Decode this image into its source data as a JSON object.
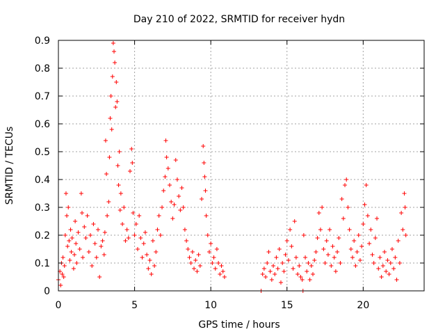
{
  "chart_data": {
    "type": "scatter",
    "title": "Day 210 of 2022, SRMTID for receiver hydn",
    "xlabel": "GPS time / hours",
    "ylabel": "SRMTID / TECUs",
    "xlim": [
      0,
      24
    ],
    "ylim": [
      0,
      0.9
    ],
    "xticks": [
      0,
      5,
      10,
      15,
      20
    ],
    "xtick_labels": [
      "0",
      "5",
      "10",
      "15",
      "20"
    ],
    "yticks": [
      0,
      0.1,
      0.2,
      0.3,
      0.4,
      0.5,
      0.6,
      0.7,
      0.8,
      0.9
    ],
    "ytick_labels": [
      "0",
      "0.1",
      "0.2",
      "0.3",
      "0.4",
      "0.5",
      "0.6",
      "0.7",
      "0.8",
      "0.9"
    ],
    "grid": true,
    "marker": "+",
    "series": [
      {
        "name": "SRMTID",
        "color": "#ff0000",
        "points": [
          [
            0.0,
            0.04
          ],
          [
            0.1,
            0.07
          ],
          [
            0.15,
            0.02
          ],
          [
            0.2,
            0.1
          ],
          [
            0.25,
            0.06
          ],
          [
            0.3,
            0.12
          ],
          [
            0.35,
            0.05
          ],
          [
            0.4,
            0.09
          ],
          [
            0.45,
            0.2
          ],
          [
            0.5,
            0.35
          ],
          [
            0.55,
            0.27
          ],
          [
            0.6,
            0.16
          ],
          [
            0.65,
            0.3
          ],
          [
            0.7,
            0.18
          ],
          [
            0.75,
            0.11
          ],
          [
            0.8,
            0.22
          ],
          [
            0.85,
            0.14
          ],
          [
            0.9,
            0.19
          ],
          [
            1.0,
            0.08
          ],
          [
            1.05,
            0.13
          ],
          [
            1.1,
            0.25
          ],
          [
            1.15,
            0.17
          ],
          [
            1.2,
            0.1
          ],
          [
            1.3,
            0.21
          ],
          [
            1.4,
            0.15
          ],
          [
            1.5,
            0.35
          ],
          [
            1.55,
            0.28
          ],
          [
            1.6,
            0.12
          ],
          [
            1.7,
            0.23
          ],
          [
            1.8,
            0.19
          ],
          [
            1.9,
            0.27
          ],
          [
            2.0,
            0.14
          ],
          [
            2.1,
            0.2
          ],
          [
            2.2,
            0.09
          ],
          [
            2.3,
            0.24
          ],
          [
            2.4,
            0.17
          ],
          [
            2.5,
            0.12
          ],
          [
            2.6,
            0.22
          ],
          [
            2.7,
            0.05
          ],
          [
            2.8,
            0.16
          ],
          [
            2.9,
            0.18
          ],
          [
            3.0,
            0.13
          ],
          [
            3.05,
            0.21
          ],
          [
            3.1,
            0.54
          ],
          [
            3.15,
            0.42
          ],
          [
            3.2,
            0.27
          ],
          [
            3.3,
            0.32
          ],
          [
            3.35,
            0.48
          ],
          [
            3.4,
            0.62
          ],
          [
            3.45,
            0.7
          ],
          [
            3.5,
            0.58
          ],
          [
            3.55,
            0.77
          ],
          [
            3.6,
            0.89
          ],
          [
            3.65,
            0.86
          ],
          [
            3.7,
            0.82
          ],
          [
            3.75,
            0.66
          ],
          [
            3.8,
            0.75
          ],
          [
            3.85,
            0.68
          ],
          [
            3.9,
            0.45
          ],
          [
            3.95,
            0.38
          ],
          [
            4.0,
            0.5
          ],
          [
            4.05,
            0.29
          ],
          [
            4.1,
            0.35
          ],
          [
            4.2,
            0.24
          ],
          [
            4.3,
            0.3
          ],
          [
            4.4,
            0.18
          ],
          [
            4.5,
            0.22
          ],
          [
            4.6,
            0.19
          ],
          [
            4.7,
            0.43
          ],
          [
            4.8,
            0.51
          ],
          [
            4.85,
            0.46
          ],
          [
            4.9,
            0.28
          ],
          [
            5.0,
            0.2
          ],
          [
            5.1,
            0.24
          ],
          [
            5.2,
            0.15
          ],
          [
            5.3,
            0.27
          ],
          [
            5.4,
            0.19
          ],
          [
            5.5,
            0.12
          ],
          [
            5.6,
            0.17
          ],
          [
            5.7,
            0.21
          ],
          [
            5.8,
            0.13
          ],
          [
            5.9,
            0.08
          ],
          [
            6.0,
            0.11
          ],
          [
            6.1,
            0.06
          ],
          [
            6.2,
            0.18
          ],
          [
            6.3,
            0.09
          ],
          [
            6.4,
            0.14
          ],
          [
            6.5,
            0.22
          ],
          [
            6.6,
            0.27
          ],
          [
            6.7,
            0.2
          ],
          [
            6.8,
            0.3
          ],
          [
            6.9,
            0.36
          ],
          [
            7.0,
            0.41
          ],
          [
            7.05,
            0.54
          ],
          [
            7.1,
            0.48
          ],
          [
            7.2,
            0.44
          ],
          [
            7.3,
            0.38
          ],
          [
            7.4,
            0.32
          ],
          [
            7.5,
            0.26
          ],
          [
            7.6,
            0.31
          ],
          [
            7.7,
            0.47
          ],
          [
            7.8,
            0.4
          ],
          [
            7.9,
            0.34
          ],
          [
            8.0,
            0.29
          ],
          [
            8.1,
            0.37
          ],
          [
            8.2,
            0.3
          ],
          [
            8.3,
            0.22
          ],
          [
            8.4,
            0.18
          ],
          [
            8.5,
            0.15
          ],
          [
            8.6,
            0.12
          ],
          [
            8.7,
            0.1
          ],
          [
            8.8,
            0.14
          ],
          [
            8.9,
            0.08
          ],
          [
            9.0,
            0.11
          ],
          [
            9.1,
            0.07
          ],
          [
            9.2,
            0.13
          ],
          [
            9.3,
            0.09
          ],
          [
            9.4,
            0.33
          ],
          [
            9.5,
            0.52
          ],
          [
            9.55,
            0.46
          ],
          [
            9.6,
            0.41
          ],
          [
            9.65,
            0.36
          ],
          [
            9.7,
            0.27
          ],
          [
            9.8,
            0.2
          ],
          [
            9.9,
            0.14
          ],
          [
            10.0,
            0.17
          ],
          [
            10.1,
            0.1
          ],
          [
            10.2,
            0.12
          ],
          [
            10.3,
            0.08
          ],
          [
            10.4,
            0.15
          ],
          [
            10.5,
            0.1
          ],
          [
            10.6,
            0.06
          ],
          [
            10.7,
            0.09
          ],
          [
            10.8,
            0.07
          ],
          [
            10.9,
            0.05
          ],
          [
            13.3,
            0.0
          ],
          [
            13.4,
            0.06
          ],
          [
            13.5,
            0.08
          ],
          [
            13.6,
            0.05
          ],
          [
            13.7,
            0.1
          ],
          [
            13.8,
            0.14
          ],
          [
            13.9,
            0.07
          ],
          [
            14.0,
            0.04
          ],
          [
            14.1,
            0.09
          ],
          [
            14.2,
            0.06
          ],
          [
            14.3,
            0.12
          ],
          [
            14.4,
            0.08
          ],
          [
            14.5,
            0.15
          ],
          [
            14.6,
            0.03
          ],
          [
            14.7,
            0.1
          ],
          [
            14.8,
            0.07
          ],
          [
            14.9,
            0.13
          ],
          [
            15.0,
            0.18
          ],
          [
            15.1,
            0.11
          ],
          [
            15.2,
            0.22
          ],
          [
            15.3,
            0.16
          ],
          [
            15.4,
            0.08
          ],
          [
            15.5,
            0.25
          ],
          [
            15.6,
            0.12
          ],
          [
            15.7,
            0.06
          ],
          [
            15.8,
            0.09
          ],
          [
            15.9,
            0.05
          ],
          [
            16.0,
            0.04
          ],
          [
            16.05,
            0.0
          ],
          [
            16.1,
            0.2
          ],
          [
            16.2,
            0.12
          ],
          [
            16.3,
            0.07
          ],
          [
            16.4,
            0.1
          ],
          [
            16.5,
            0.04
          ],
          [
            16.6,
            0.09
          ],
          [
            16.7,
            0.06
          ],
          [
            16.8,
            0.11
          ],
          [
            16.9,
            0.14
          ],
          [
            17.0,
            0.19
          ],
          [
            17.1,
            0.28
          ],
          [
            17.2,
            0.22
          ],
          [
            17.3,
            0.3
          ],
          [
            17.4,
            0.15
          ],
          [
            17.5,
            0.1
          ],
          [
            17.6,
            0.18
          ],
          [
            17.7,
            0.13
          ],
          [
            17.8,
            0.22
          ],
          [
            17.9,
            0.09
          ],
          [
            18.0,
            0.16
          ],
          [
            18.1,
            0.12
          ],
          [
            18.2,
            0.07
          ],
          [
            18.3,
            0.14
          ],
          [
            18.4,
            0.19
          ],
          [
            18.5,
            0.1
          ],
          [
            18.6,
            0.33
          ],
          [
            18.7,
            0.26
          ],
          [
            18.8,
            0.38
          ],
          [
            18.9,
            0.4
          ],
          [
            19.0,
            0.3
          ],
          [
            19.1,
            0.22
          ],
          [
            19.2,
            0.15
          ],
          [
            19.3,
            0.12
          ],
          [
            19.4,
            0.18
          ],
          [
            19.5,
            0.09
          ],
          [
            19.6,
            0.14
          ],
          [
            19.7,
            0.2
          ],
          [
            19.8,
            0.11
          ],
          [
            19.9,
            0.16
          ],
          [
            20.0,
            0.24
          ],
          [
            20.1,
            0.31
          ],
          [
            20.2,
            0.38
          ],
          [
            20.3,
            0.27
          ],
          [
            20.4,
            0.17
          ],
          [
            20.5,
            0.22
          ],
          [
            20.6,
            0.13
          ],
          [
            20.7,
            0.1
          ],
          [
            20.8,
            0.19
          ],
          [
            20.9,
            0.26
          ],
          [
            21.0,
            0.08
          ],
          [
            21.1,
            0.12
          ],
          [
            21.2,
            0.05
          ],
          [
            21.3,
            0.09
          ],
          [
            21.4,
            0.14
          ],
          [
            21.5,
            0.07
          ],
          [
            21.6,
            0.11
          ],
          [
            21.7,
            0.06
          ],
          [
            21.8,
            0.1
          ],
          [
            21.9,
            0.15
          ],
          [
            22.0,
            0.08
          ],
          [
            22.1,
            0.12
          ],
          [
            22.2,
            0.04
          ],
          [
            22.3,
            0.18
          ],
          [
            22.4,
            0.1
          ],
          [
            22.5,
            0.28
          ],
          [
            22.6,
            0.22
          ],
          [
            22.7,
            0.35
          ],
          [
            22.75,
            0.3
          ],
          [
            22.8,
            0.2
          ]
        ]
      }
    ]
  }
}
